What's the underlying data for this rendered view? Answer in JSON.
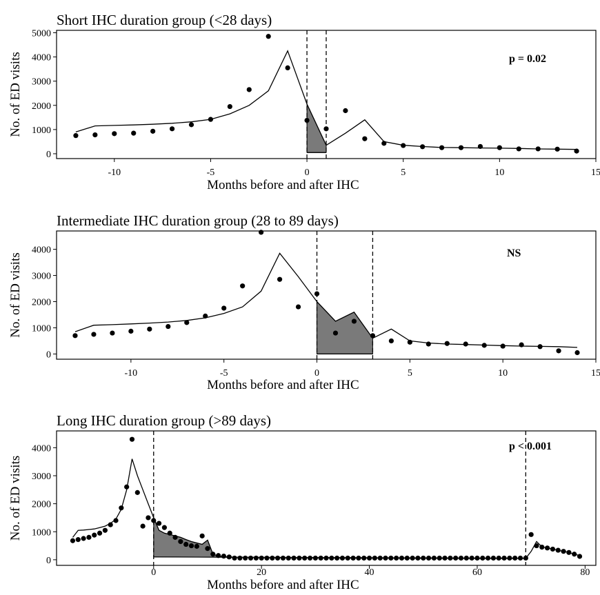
{
  "chart_data": [
    {
      "type": "scatter",
      "title": "Short IHC duration group (<28 days)",
      "xlabel": "Months before and after IHC",
      "ylabel": "No. of ED visits",
      "annotation": "p  = 0.02",
      "xlim": [
        -13,
        15
      ],
      "ylim": [
        -200,
        5100
      ],
      "x_ticks": [
        -10,
        -5,
        0,
        5,
        10,
        15
      ],
      "y_ticks": [
        0,
        1000,
        2000,
        3000,
        4000,
        5000
      ],
      "intervention_window": [
        0,
        1
      ],
      "observed": {
        "x": [
          -12,
          -11,
          -10,
          -9,
          -8,
          -7,
          -6,
          -5,
          -4,
          -3,
          -2,
          -1,
          0,
          1,
          2,
          3,
          4,
          5,
          6,
          7,
          8,
          9,
          10,
          11,
          12,
          13,
          14
        ],
        "y": [
          750,
          780,
          830,
          850,
          930,
          1030,
          1200,
          1420,
          1950,
          2650,
          4850,
          3550,
          1380,
          1030,
          1780,
          620,
          430,
          340,
          290,
          250,
          250,
          300,
          250,
          200,
          200,
          190,
          110
        ]
      },
      "fitted": {
        "x": [
          -12,
          -11,
          -10,
          -9,
          -8,
          -7,
          -6,
          -5,
          -4,
          -3,
          -2,
          -1,
          0,
          1,
          2,
          3,
          4,
          5,
          6,
          7,
          8,
          9,
          10,
          11,
          12,
          13,
          14
        ],
        "y": [
          900,
          1150,
          1170,
          1190,
          1220,
          1260,
          1320,
          1420,
          1650,
          2000,
          2600,
          4250,
          2050,
          350,
          850,
          1400,
          500,
          350,
          300,
          260,
          250,
          240,
          230,
          220,
          200,
          190,
          180
        ]
      },
      "counterfactual": {
        "x": [
          0,
          1
        ],
        "y": [
          50,
          50
        ]
      }
    },
    {
      "type": "scatter",
      "title": "Intermediate IHC duration group (28 to 89 days)",
      "xlabel": "Months before and after IHC",
      "ylabel": "No. of ED visits",
      "annotation": "NS",
      "xlim": [
        -14,
        15
      ],
      "ylim": [
        -200,
        4700
      ],
      "x_ticks": [
        -10,
        -5,
        0,
        5,
        10,
        15
      ],
      "y_ticks": [
        0,
        1000,
        2000,
        3000,
        4000
      ],
      "intervention_window": [
        0,
        3
      ],
      "observed": {
        "x": [
          -13,
          -12,
          -11,
          -10,
          -9,
          -8,
          -7,
          -6,
          -5,
          -4,
          -3,
          -2,
          -1,
          0,
          1,
          2,
          3,
          4,
          5,
          6,
          7,
          8,
          9,
          10,
          11,
          12,
          13,
          14
        ],
        "y": [
          700,
          750,
          800,
          870,
          950,
          1050,
          1200,
          1450,
          1750,
          2600,
          4650,
          2850,
          1800,
          2300,
          800,
          1250,
          700,
          500,
          450,
          380,
          400,
          380,
          330,
          300,
          350,
          280,
          120,
          50
        ]
      },
      "fitted": {
        "x": [
          -13,
          -12,
          -11,
          -10,
          -9,
          -8,
          -7,
          -6,
          -5,
          -4,
          -3,
          -2,
          -1,
          0,
          1,
          2,
          3,
          4,
          5,
          6,
          7,
          8,
          9,
          10,
          11,
          12,
          13,
          14
        ],
        "y": [
          850,
          1100,
          1120,
          1150,
          1180,
          1220,
          1280,
          1380,
          1550,
          1800,
          2400,
          3850,
          2950,
          2000,
          1250,
          1600,
          600,
          950,
          500,
          420,
          380,
          360,
          340,
          320,
          300,
          290,
          280,
          250
        ]
      },
      "counterfactual": {
        "x": [
          0,
          3
        ],
        "y": [
          0,
          0
        ]
      }
    },
    {
      "type": "scatter",
      "title": "Long IHC duration group (>89 days)",
      "xlabel": "Months before and after IHC",
      "ylabel": "No. of ED visits",
      "annotation": "p < 0.001",
      "xlim": [
        -18,
        82
      ],
      "ylim": [
        -200,
        4600
      ],
      "x_ticks": [
        0,
        20,
        40,
        60,
        80
      ],
      "y_ticks": [
        0,
        1000,
        2000,
        3000,
        4000
      ],
      "intervention_window": [
        0,
        69
      ],
      "observed_early": {
        "x": [
          -15,
          -14,
          -13,
          -12,
          -11,
          -10,
          -9,
          -8,
          -7,
          -6,
          -5,
          -4,
          -3,
          -2,
          -1,
          0,
          1,
          2,
          3,
          4,
          5,
          6,
          7,
          8,
          9,
          10,
          11,
          12,
          13,
          14
        ],
        "y": [
          680,
          720,
          760,
          800,
          880,
          950,
          1050,
          1250,
          1400,
          1850,
          2600,
          4300,
          2400,
          1200,
          1500,
          1400,
          1300,
          1150,
          950,
          800,
          650,
          550,
          500,
          480,
          850,
          400,
          200,
          150,
          130,
          100
        ]
      },
      "observed_late": {
        "x": [
          70,
          71,
          72,
          73,
          74,
          75,
          76,
          77,
          78,
          79
        ],
        "y": [
          900,
          500,
          450,
          420,
          380,
          340,
          300,
          260,
          200,
          120
        ]
      },
      "observed_flat_range": [
        15,
        69
      ],
      "observed_flat_value": 60,
      "fitted": {
        "x": [
          -15,
          -14,
          -13,
          -12,
          -11,
          -10,
          -9,
          -8,
          -7,
          -6,
          -5,
          -4,
          -3,
          -2,
          -1,
          0,
          1,
          2,
          3,
          4,
          5,
          6,
          7,
          8,
          9,
          10,
          11,
          12,
          13,
          14,
          15,
          20,
          30,
          40,
          50,
          60,
          69,
          70,
          71,
          72,
          73,
          74,
          75,
          76,
          77,
          78,
          79
        ],
        "y": [
          800,
          1050,
          1060,
          1080,
          1100,
          1150,
          1200,
          1300,
          1450,
          1800,
          2500,
          3600,
          3000,
          2500,
          2000,
          1500,
          1050,
          950,
          900,
          850,
          800,
          720,
          650,
          600,
          550,
          700,
          200,
          130,
          110,
          100,
          90,
          80,
          70,
          60,
          55,
          50,
          50,
          300,
          650,
          460,
          420,
          380,
          340,
          300,
          260,
          200,
          150
        ]
      },
      "counterfactual": {
        "x": [
          0,
          69
        ],
        "y": [
          100,
          50
        ]
      }
    }
  ]
}
